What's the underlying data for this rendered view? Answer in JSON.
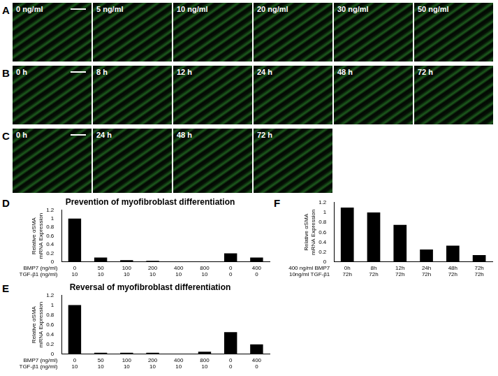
{
  "image_panels": [
    {
      "letter": "A",
      "labels": [
        "0 ng/ml",
        "5 ng/ml",
        "10 ng/ml",
        "20 ng/ml",
        "30 ng/ml",
        "50 ng/ml"
      ]
    },
    {
      "letter": "B",
      "labels": [
        "0 h",
        "8 h",
        "12 h",
        "24 h",
        "48 h",
        "72 h"
      ]
    },
    {
      "letter": "C",
      "labels": [
        "0 h",
        "24 h",
        "48 h",
        "72 h"
      ]
    }
  ],
  "chart_letters": [
    "D",
    "E",
    "F"
  ],
  "chart_data": [
    {
      "type": "bar",
      "title": "Prevention of myofibroblast differentiation",
      "ylabel": [
        "Relative αSMA",
        "mRNA Expression"
      ],
      "xlabel": [
        "BMP7 (ng/ml)",
        "TGF-β1 (ng/ml)"
      ],
      "categories": [
        [
          "0",
          "10"
        ],
        [
          "50",
          "10"
        ],
        [
          "100",
          "10"
        ],
        [
          "200",
          "10"
        ],
        [
          "400",
          "10"
        ],
        [
          "800",
          "10"
        ],
        [
          "0",
          "0"
        ],
        [
          "400",
          "0"
        ]
      ],
      "values": [
        1.0,
        0.1,
        0.04,
        0.025,
        0.01,
        0.005,
        0.2,
        0.1
      ],
      "color": "#000000",
      "ylim": [
        0,
        1.2
      ],
      "yticks": [
        0,
        0.2,
        0.4,
        0.6,
        0.8,
        1,
        1.2
      ],
      "grid": false
    },
    {
      "type": "bar",
      "title": "Reversal of myofibroblast differentiation",
      "ylabel": [
        "Relative αSMA",
        "mRNA Expression"
      ],
      "xlabel": [
        "BMP7 (ng/ml)",
        "TGF-β1 (ng/ml)"
      ],
      "categories": [
        [
          "0",
          "10"
        ],
        [
          "50",
          "10"
        ],
        [
          "100",
          "10"
        ],
        [
          "200",
          "10"
        ],
        [
          "400",
          "10"
        ],
        [
          "800",
          "10"
        ],
        [
          "0",
          "0"
        ],
        [
          "400",
          "0"
        ]
      ],
      "values": [
        1.0,
        0.03,
        0.03,
        0.03,
        0.005,
        0.05,
        0.45,
        0.2
      ],
      "color": "#000000",
      "ylim": [
        0,
        1.2
      ],
      "yticks": [
        0,
        0.2,
        0.4,
        0.6,
        0.8,
        1,
        1.2
      ],
      "grid": false
    },
    {
      "type": "bar",
      "ylabel": [
        "Relative αSMA",
        "mRNA Expression"
      ],
      "xlabel": [
        "400 ng/ml BMP7",
        "10ng/ml TGF-β1"
      ],
      "categories": [
        [
          "0h",
          "72h"
        ],
        [
          "8h",
          "72h"
        ],
        [
          "12h",
          "72h"
        ],
        [
          "24h",
          "72h"
        ],
        [
          "48h",
          "72h"
        ],
        [
          "72h",
          "72h"
        ]
      ],
      "values": [
        1.1,
        1.0,
        0.75,
        0.25,
        0.33,
        0.14
      ],
      "color": "#000000",
      "ylim": [
        0,
        1.2
      ],
      "yticks": [
        0,
        0.2,
        0.4,
        0.6,
        0.8,
        1,
        1.2
      ],
      "grid": false
    }
  ]
}
